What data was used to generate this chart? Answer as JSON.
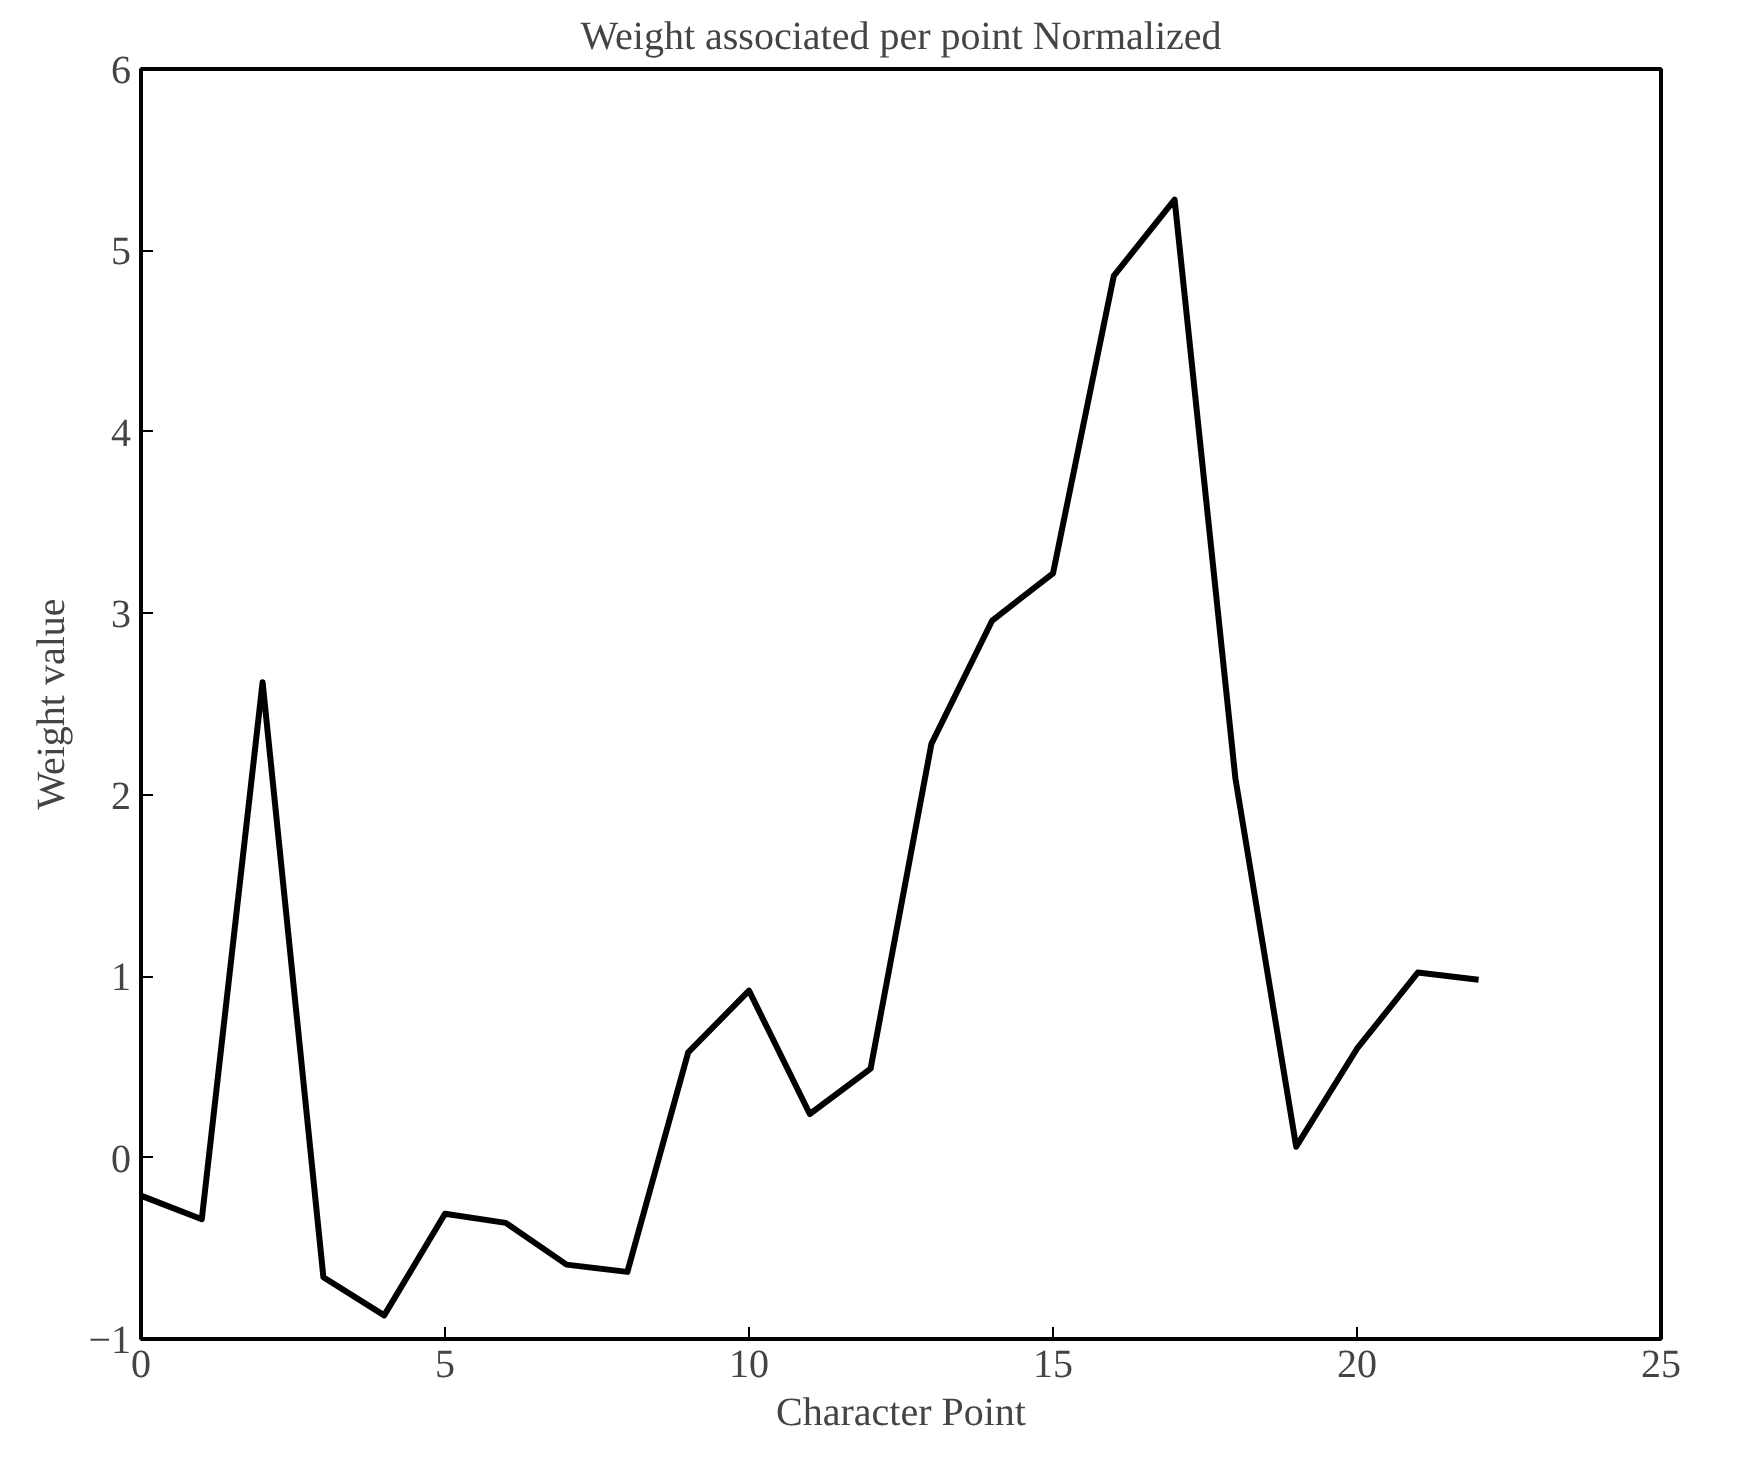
{
  "chart_data": {
    "type": "line",
    "title": "Weight associated per point Normalized",
    "xlabel": "Character Point",
    "ylabel": "Weight value",
    "x": [
      0,
      1,
      2,
      3,
      4,
      5,
      6,
      7,
      8,
      9,
      10,
      11,
      12,
      13,
      14,
      15,
      16,
      17,
      18,
      19,
      20,
      21,
      22
    ],
    "series": [
      {
        "color": "#000000",
        "values": [
          -0.21,
          -0.34,
          2.62,
          -0.66,
          -0.87,
          -0.31,
          -0.36,
          -0.59,
          -0.63,
          0.58,
          0.92,
          0.24,
          0.49,
          2.28,
          2.96,
          3.22,
          4.86,
          5.28,
          2.09,
          0.06,
          0.6,
          1.02,
          0.98
        ]
      }
    ],
    "xlim": [
      0,
      25
    ],
    "xticks": [
      0,
      5,
      10,
      15,
      20,
      25
    ],
    "ylim": [
      -1,
      6
    ],
    "yticks": [
      -1,
      0,
      1,
      2,
      3,
      4,
      5,
      6
    ],
    "grid": false,
    "line_style": "solid",
    "marker": "none"
  }
}
